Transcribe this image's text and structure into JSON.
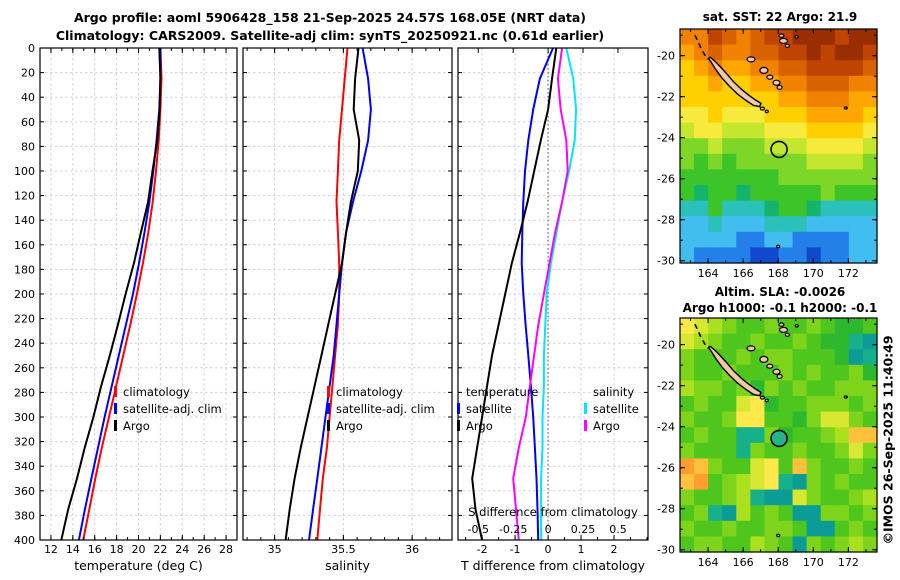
{
  "header": {
    "title_line1": "Argo profile: aoml 5906428_158 21-Sep-2025 24.57S 168.05E (NRT data)",
    "title_line2": "Climatology: CARS2009. Satellite-adj clim: synTS_20250921.nc (0.61d earlier)"
  },
  "watermark": "©IMOS 26-Sep-2025 11:40:49",
  "colors": {
    "climatology": "#ff0000",
    "satellite": "#0000ee",
    "argo": "#000000",
    "satellite_salinity": "#00e5ff",
    "argo_salinity": "#ff00ff",
    "grid": "#ccd1e8",
    "land": "#f2c9a2"
  },
  "depth_axis": {
    "lim": [
      0,
      400
    ],
    "tick_labels": [
      "0",
      "20",
      "40",
      "60",
      "80",
      "100",
      "120",
      "140",
      "160",
      "180",
      "200",
      "220",
      "240",
      "260",
      "280",
      "300",
      "320",
      "340",
      "360",
      "380",
      "400"
    ]
  },
  "chart_data": [
    {
      "id": "temperature-profile",
      "type": "line",
      "xlabel": "temperature (deg C)",
      "xlim": [
        11.0,
        29.0
      ],
      "x_ticks": [
        12,
        14,
        16,
        18,
        20,
        22,
        24,
        26,
        28
      ],
      "x_tick_labels": [
        "12",
        "14",
        "16",
        "18",
        "20",
        "22",
        "24",
        "26",
        "28"
      ],
      "x_minor_step": 1,
      "depths": [
        0,
        25,
        50,
        75,
        100,
        125,
        150,
        175,
        200,
        225,
        250,
        275,
        300,
        325,
        350,
        375,
        400
      ],
      "series": [
        {
          "name": "climatology",
          "color": "#ff0000",
          "values": [
            22.0,
            22.1,
            22.0,
            21.85,
            21.6,
            21.3,
            20.9,
            20.4,
            19.85,
            19.25,
            18.6,
            17.95,
            17.3,
            16.65,
            16.05,
            15.5,
            14.95
          ]
        },
        {
          "name": "satellite-adj. clim",
          "color": "#0000ee",
          "values": [
            22.0,
            22.0,
            21.9,
            21.65,
            21.35,
            21.0,
            20.55,
            20.05,
            19.5,
            18.85,
            18.2,
            17.55,
            16.9,
            16.3,
            15.7,
            15.1,
            14.55
          ]
        },
        {
          "name": "Argo",
          "color": "#000000",
          "values": [
            21.9,
            22.0,
            21.93,
            21.72,
            21.28,
            20.88,
            20.22,
            19.58,
            18.82,
            18.12,
            17.38,
            16.58,
            15.88,
            15.08,
            14.38,
            13.58,
            12.95
          ]
        }
      ]
    },
    {
      "id": "salinity-profile",
      "type": "line",
      "xlabel": "salinity",
      "xlim": [
        34.77,
        36.29
      ],
      "x_ticks": [
        35,
        35.5,
        36
      ],
      "x_tick_labels": [
        "35",
        "35.5",
        "36"
      ],
      "x_minor_step": 0.1,
      "depths": [
        0,
        25,
        50,
        75,
        100,
        125,
        150,
        175,
        200,
        225,
        250,
        275,
        300,
        325,
        350,
        375,
        400
      ],
      "series": [
        {
          "name": "climatology",
          "color": "#ff0000",
          "values": [
            35.53,
            35.51,
            35.49,
            35.47,
            35.46,
            35.45,
            35.46,
            35.47,
            35.47,
            35.46,
            35.44,
            35.42,
            35.4,
            35.38,
            35.35,
            35.33,
            35.31
          ]
        },
        {
          "name": "satellite-adj. clim",
          "color": "#0000ee",
          "values": [
            35.64,
            35.68,
            35.7,
            35.68,
            35.63,
            35.57,
            35.52,
            35.49,
            35.47,
            35.45,
            35.43,
            35.4,
            35.37,
            35.34,
            35.31,
            35.28,
            35.25
          ]
        },
        {
          "name": "Argo",
          "color": "#000000",
          "values": [
            35.61,
            35.585,
            35.575,
            35.615,
            35.605,
            35.555,
            35.52,
            35.49,
            35.44,
            35.39,
            35.34,
            35.29,
            35.24,
            35.19,
            35.145,
            35.11,
            35.08
          ]
        }
      ]
    },
    {
      "id": "difference-profile",
      "type": "line",
      "xlabel": "T difference from climatology",
      "inner_xlabel": "S difference from climatology",
      "t_xlim": [
        -2.73,
        3.03
      ],
      "t_ticks": [
        -2,
        -1,
        0,
        1,
        2
      ],
      "t_tick_labels": [
        "-2",
        "-1",
        "0",
        "1",
        "2"
      ],
      "t_minor_step": 0.5,
      "s_xlim": [
        -0.645,
        0.715
      ],
      "s_ticks": [
        -0.5,
        -0.25,
        0,
        0.25,
        0.5
      ],
      "s_tick_labels": [
        "-0.5",
        "-0.25",
        "0",
        "0.25",
        "0.5"
      ],
      "legend": {
        "t_header": "temperature",
        "t_items": [
          "satellite",
          "Argo"
        ],
        "s_header": "salinity",
        "s_items": [
          "satellite",
          "Argo"
        ]
      },
      "depths": [
        0,
        25,
        50,
        75,
        100,
        125,
        150,
        175,
        200,
        225,
        250,
        275,
        300,
        325,
        350,
        375,
        400
      ],
      "series": [
        {
          "name": "satellite T difference",
          "axis": "T",
          "color": "#0000ee",
          "values": [
            0.15,
            -0.25,
            -0.45,
            -0.6,
            -0.7,
            -0.75,
            -0.78,
            -0.8,
            -0.75,
            -0.68,
            -0.6,
            -0.52,
            -0.45,
            -0.4,
            -0.35,
            -0.32,
            -0.3
          ]
        },
        {
          "name": "Argo T difference",
          "axis": "T",
          "color": "#000000",
          "values": [
            0.25,
            0.12,
            0.0,
            -0.22,
            -0.42,
            -0.62,
            -0.85,
            -1.1,
            -1.3,
            -1.5,
            -1.7,
            -1.85,
            -2.0,
            -2.15,
            -2.3,
            -2.2,
            -2.0
          ]
        },
        {
          "name": "satellite S difference",
          "axis": "S",
          "color": "#00e5ff",
          "values": [
            0.13,
            0.18,
            0.2,
            0.19,
            0.15,
            0.1,
            0.06,
            0.02,
            -0.01,
            -0.02,
            -0.03,
            -0.03,
            -0.04,
            -0.04,
            -0.05,
            -0.05,
            -0.05
          ]
        },
        {
          "name": "Argo S difference",
          "axis": "S",
          "color": "#ff00ff",
          "values": [
            0.1,
            0.07,
            0.09,
            0.13,
            0.14,
            0.1,
            0.05,
            0.01,
            -0.03,
            -0.07,
            -0.1,
            -0.13,
            -0.16,
            -0.21,
            -0.25,
            -0.23,
            -0.21
          ]
        }
      ]
    },
    {
      "id": "sst-map",
      "type": "heatmap",
      "title": "sat. SST: 22 Argo: 21.9",
      "lon_lim": [
        162.4,
        173.63
      ],
      "lat_lim": [
        -18.7,
        -30.11
      ],
      "lon_ticks": [
        164,
        166,
        168,
        170,
        172
      ],
      "lon_tick_labels": [
        "164",
        "166",
        "168",
        "170",
        "172"
      ],
      "lat_ticks": [
        -20,
        -22,
        -24,
        -26,
        -28,
        -30
      ],
      "lat_tick_labels": [
        "-20",
        "-22",
        "-24",
        "-26",
        "-28",
        "-30"
      ],
      "palette": [
        "#992e00",
        "#bf4400",
        "#d96200",
        "#f08200",
        "#ffa600",
        "#ffd000",
        "#f7ea3d",
        "#c4e62e",
        "#7ed629",
        "#3dc428",
        "#14b46b",
        "#2cc0ba",
        "#41bdf0",
        "#2280e8",
        "#1149cc"
      ],
      "rows": [
        "33123211000100",
        "43233221101001",
        "54344332211112",
        "55455443322233",
        "55555554433344",
        "66566655544445",
        "76677766655556",
        "88788877766667",
        "89898888877778",
        "99999998888888",
        "9a99a999998999",
        "bb9bbba99abbbb",
        "ccbcccbbbccccc",
        "ccccddccddddcc",
        "cddddeeddeddcc"
      ],
      "marker": {
        "lon": 168.05,
        "lat": -24.57,
        "fill": "none"
      }
    },
    {
      "id": "sla-map",
      "type": "heatmap",
      "title_line1": "Altim. SLA: -0.0026",
      "title_line2": "Argo h1000: -0.1 h2000: -0.1",
      "lon_lim": [
        162.4,
        173.63
      ],
      "lat_lim": [
        -18.7,
        -30.11
      ],
      "lon_ticks": [
        164,
        166,
        168,
        170,
        172
      ],
      "lon_tick_labels": [
        "164",
        "166",
        "168",
        "170",
        "172"
      ],
      "lat_ticks": [
        -20,
        -22,
        -24,
        -26,
        -28,
        -30
      ],
      "lat_tick_labels": [
        "-20",
        "-22",
        "-24",
        "-26",
        "-28",
        "-30"
      ],
      "palette": [
        "#2db82d",
        "#4fc61e",
        "#7dd41a",
        "#abe01e",
        "#d8e832",
        "#ffe84a",
        "#ffc03c",
        "#ff9e2e",
        "#16b08a",
        "#0c9c96"
      ],
      "rows": [
        "54321121121001",
        "43211211210089",
        "21112122111098",
        "21121112121120",
        "32212021211222",
        "12114501122212",
        "21125511024421",
        "12118820112366",
        "21118211211242",
        "76211451621121",
        "67123458921211",
        "21123899421123",
        "12893121992212",
        "21121122199121",
        "12211321921232"
      ],
      "marker": {
        "lon": 168.05,
        "lat": -24.57,
        "fill": "#25b38c"
      }
    }
  ]
}
